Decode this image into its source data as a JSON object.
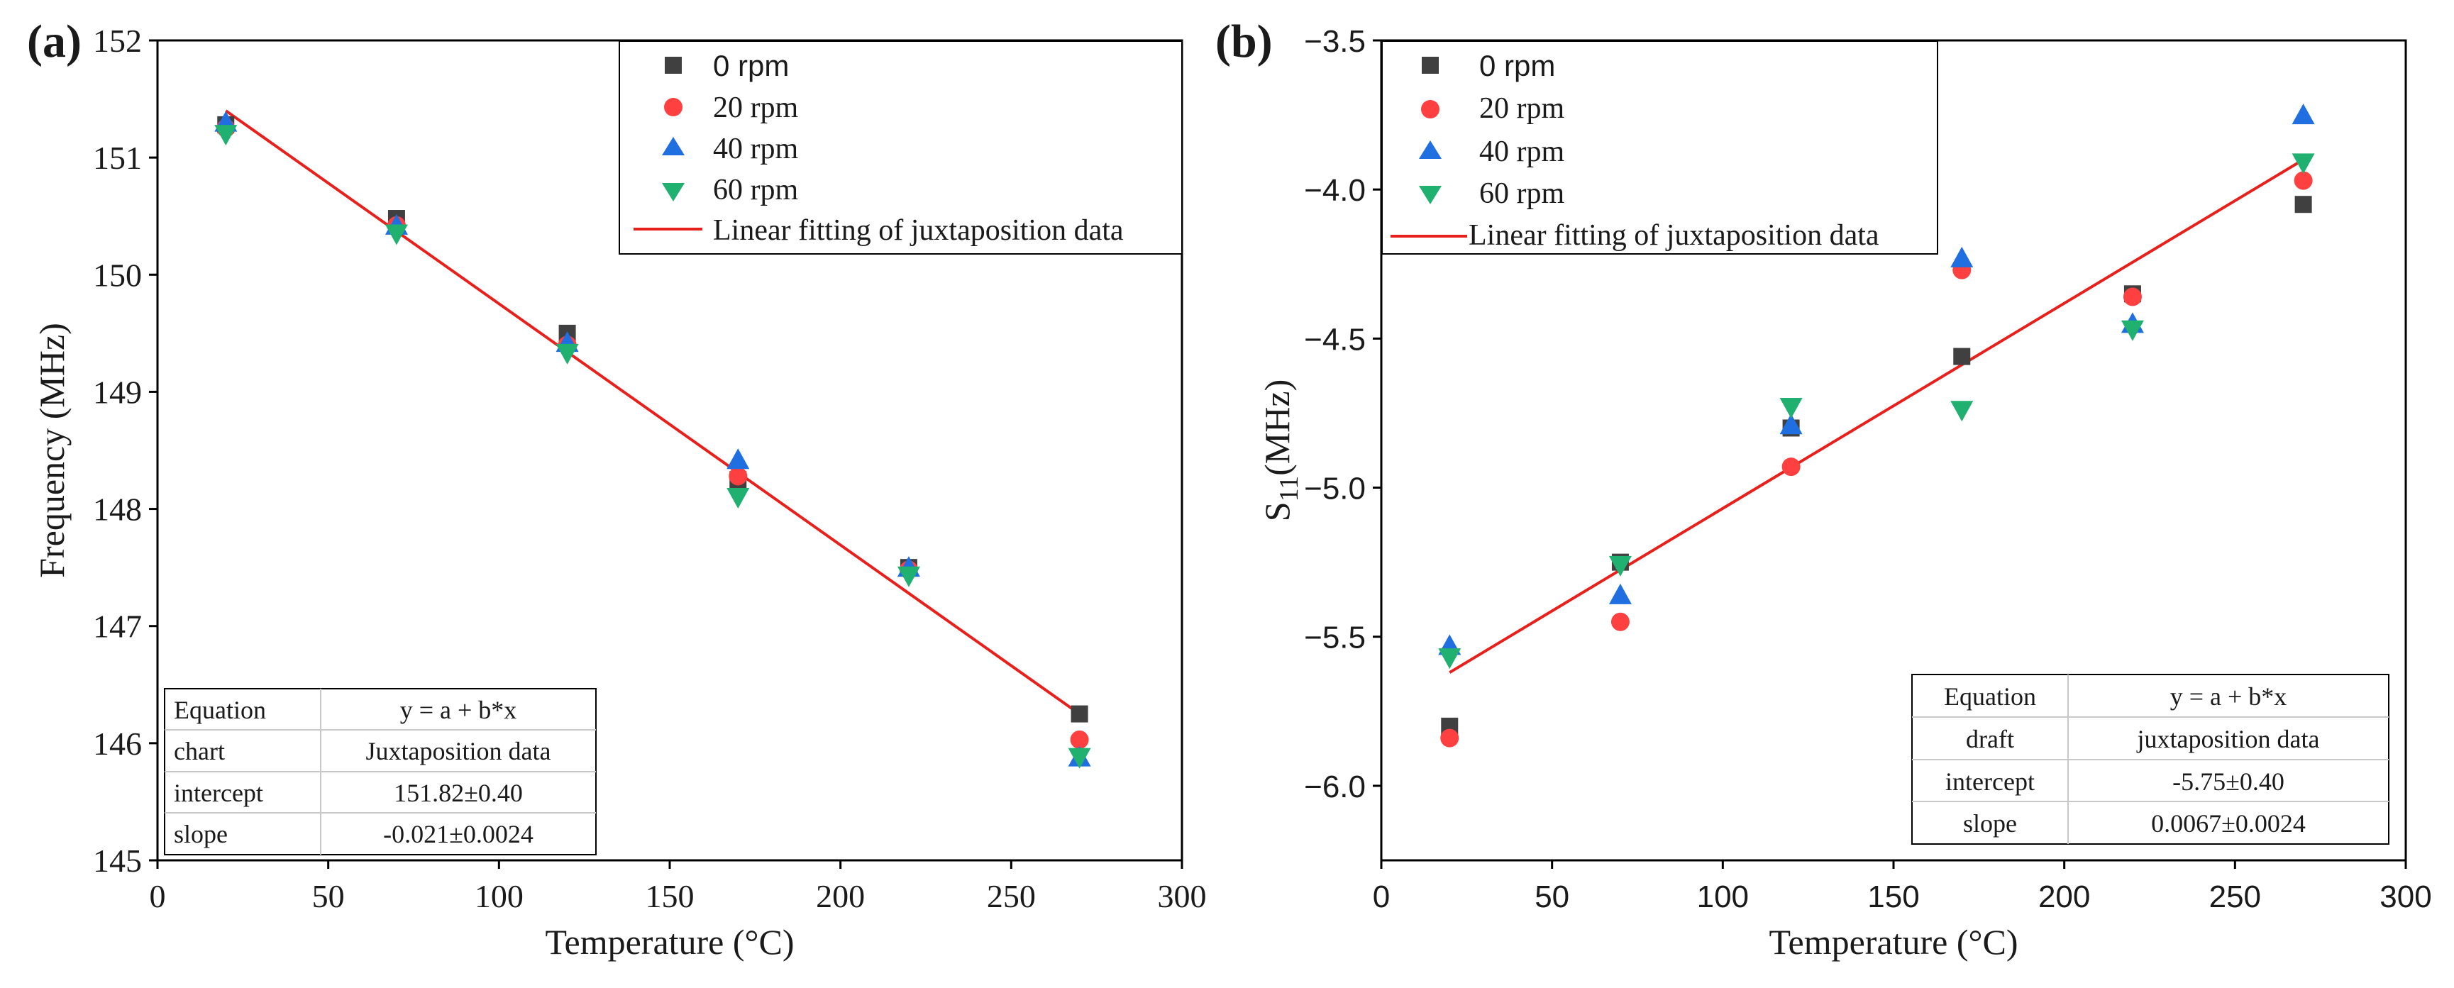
{
  "chart_data": [
    {
      "panel": "(a)",
      "type": "scatter",
      "xlabel": "Temperature (°C)",
      "ylabel": "Frequency (MHz)",
      "xlim": [
        0,
        300
      ],
      "ylim": [
        145,
        152
      ],
      "xticks": [
        0,
        50,
        100,
        150,
        200,
        250,
        300
      ],
      "yticks": [
        145,
        146,
        147,
        148,
        149,
        150,
        151,
        152
      ],
      "legend_position": "top-right",
      "series": [
        {
          "name": "0 rpm",
          "marker": "square",
          "color": "#404040",
          "x": [
            20,
            70,
            120,
            170,
            220,
            270
          ],
          "y": [
            151.28,
            150.48,
            149.5,
            148.25,
            147.5,
            146.25
          ]
        },
        {
          "name": "20 rpm",
          "marker": "circle",
          "color": "#ff4040",
          "x": [
            20,
            70,
            120,
            170,
            220,
            270
          ],
          "y": [
            151.25,
            150.42,
            149.4,
            148.28,
            147.48,
            146.03
          ]
        },
        {
          "name": "40 rpm",
          "marker": "triangle-up",
          "color": "#1f6fe0",
          "x": [
            20,
            70,
            120,
            170,
            220,
            270
          ],
          "y": [
            151.3,
            150.42,
            149.42,
            148.42,
            147.5,
            145.88
          ]
        },
        {
          "name": "60 rpm",
          "marker": "triangle-down",
          "color": "#20b070",
          "x": [
            20,
            70,
            120,
            170,
            220,
            270
          ],
          "y": [
            151.2,
            150.35,
            149.33,
            148.1,
            147.43,
            145.88
          ]
        }
      ],
      "fit": {
        "name": "Linear fitting of juxtaposition data",
        "color": "#e8201c",
        "x": [
          20,
          270
        ],
        "y": [
          151.4,
          146.25
        ]
      },
      "table": {
        "rows": [
          [
            "Equation",
            "y = a + b*x"
          ],
          [
            "chart",
            "Juxtaposition data"
          ],
          [
            "intercept",
            "151.82±0.40"
          ],
          [
            "slope",
            "-0.021±0.0024"
          ]
        ]
      }
    },
    {
      "panel": "(b)",
      "type": "scatter",
      "xlabel": "Temperature (°C)",
      "ylabel_main": "S",
      "ylabel_sub": "11",
      "ylabel_rest": "(MHz)",
      "xlim": [
        0,
        300
      ],
      "ylim": [
        -6.25,
        -3.5
      ],
      "xticks": [
        0,
        50,
        100,
        150,
        200,
        250,
        300
      ],
      "yticks": [
        -6.0,
        -5.5,
        -5.0,
        -4.5,
        -4.0,
        -3.5
      ],
      "ytick_labels": [
        "−6.0",
        "−5.5",
        "−5.0",
        "−4.5",
        "−4.0",
        "−3.5"
      ],
      "legend_position": "top-left",
      "series": [
        {
          "name": "0 rpm",
          "marker": "square",
          "color": "#404040",
          "x": [
            20,
            70,
            120,
            170,
            220,
            270
          ],
          "y": [
            -5.8,
            -5.25,
            -4.8,
            -4.56,
            -4.35,
            -4.05
          ]
        },
        {
          "name": "20 rpm",
          "marker": "circle",
          "color": "#ff4040",
          "x": [
            20,
            70,
            120,
            170,
            220,
            270
          ],
          "y": [
            -5.84,
            -5.45,
            -4.93,
            -4.27,
            -4.36,
            -3.97
          ]
        },
        {
          "name": "40 rpm",
          "marker": "triangle-up",
          "color": "#1f6fe0",
          "x": [
            20,
            70,
            120,
            170,
            220,
            270
          ],
          "y": [
            -5.53,
            -5.36,
            -4.79,
            -4.23,
            -4.45,
            -3.75
          ]
        },
        {
          "name": "60 rpm",
          "marker": "triangle-down",
          "color": "#20b070",
          "x": [
            20,
            70,
            120,
            170,
            220,
            270
          ],
          "y": [
            -5.57,
            -5.26,
            -4.73,
            -4.74,
            -4.47,
            -3.91
          ]
        }
      ],
      "fit": {
        "name": "Linear fitting of juxtaposition data",
        "color": "#e8201c",
        "x": [
          20,
          270
        ],
        "y": [
          -5.62,
          -3.9
        ]
      },
      "table": {
        "rows": [
          [
            "Equation",
            "y = a + b*x"
          ],
          [
            "draft",
            "juxtaposition data"
          ],
          [
            "intercept",
            "-5.75±0.40"
          ],
          [
            "slope",
            "0.0067±0.0024"
          ]
        ]
      }
    }
  ]
}
